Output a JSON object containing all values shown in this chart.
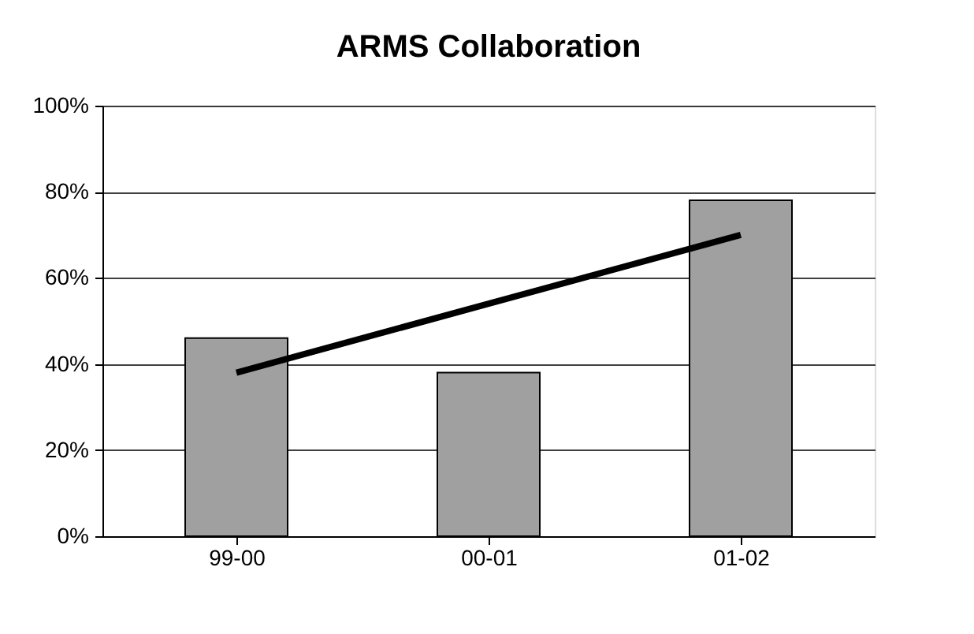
{
  "chart_data": {
    "type": "bar",
    "title": "ARMS Collaboration",
    "categories": [
      "99-00",
      "00-01",
      "01-02"
    ],
    "series": [
      {
        "color": "#a0a0a0",
        "values": [
          46,
          38,
          78
        ]
      },
      {
        "type": "line",
        "color": "#000000",
        "values": [
          38,
          54,
          70
        ],
        "marker": "none",
        "line_style": "solid"
      }
    ],
    "ylim": [
      0,
      100
    ],
    "yticks": [
      {
        "value": 0,
        "label": "0%"
      },
      {
        "value": 20,
        "label": "20%"
      },
      {
        "value": 40,
        "label": "40%"
      },
      {
        "value": 60,
        "label": "60%"
      },
      {
        "value": 80,
        "label": "80%"
      },
      {
        "value": 100,
        "label": "100%"
      }
    ],
    "grid": "y",
    "legend": false
  }
}
